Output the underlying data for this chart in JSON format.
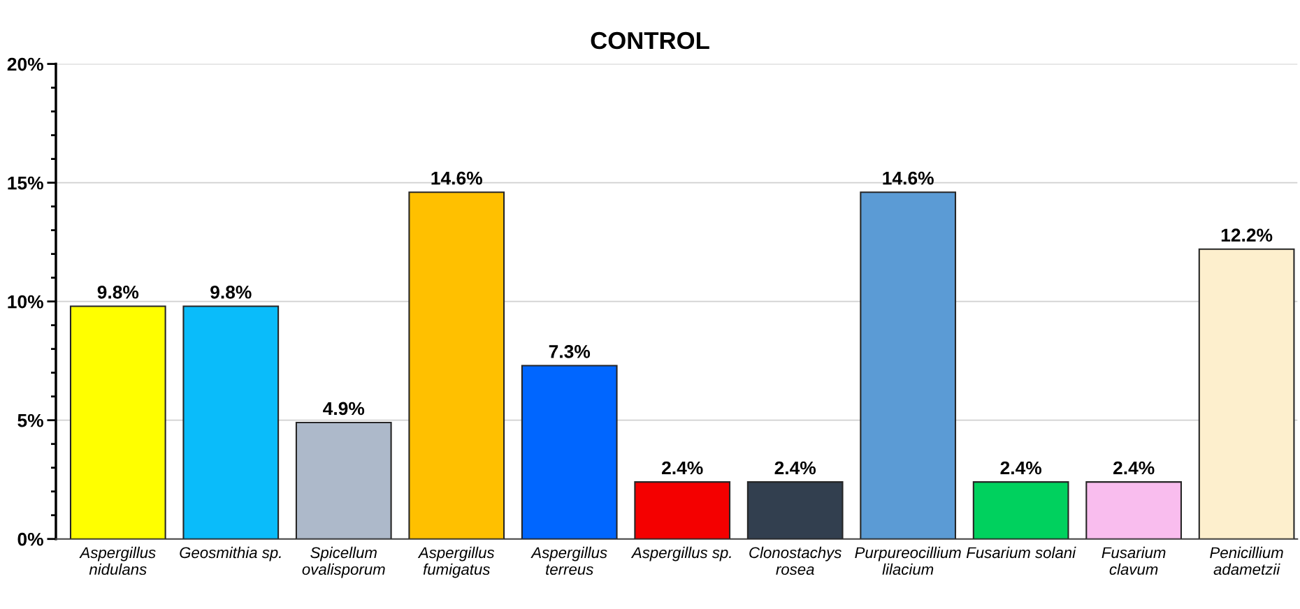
{
  "chart_data": {
    "type": "bar",
    "title": "CONTROL",
    "categories": [
      "Aspergillus\nnidulans",
      "Geosmithia sp.",
      "Spicellum\novalisporum",
      "Aspergillus\nfumigatus",
      "Aspergillus\nterreus",
      "Aspergillus sp.",
      "Clonostachys\nrosea",
      "Purpureocillium\nlilacium",
      "Fusarium solani",
      "Fusarium\nclavum",
      "Penicillium\nadametzii"
    ],
    "values": [
      9.8,
      9.8,
      4.9,
      14.6,
      7.3,
      2.4,
      2.4,
      14.6,
      2.4,
      2.4,
      12.2
    ],
    "colors": [
      "#ffff00",
      "#0abcfa",
      "#adb9ca",
      "#ffc000",
      "#0066ff",
      "#f40000",
      "#323f4f",
      "#5b9bd5",
      "#00d15e",
      "#f9bdee",
      "#fdefcd"
    ],
    "value_labels": [
      "9.8%",
      "9.8%",
      "4.9%",
      "14.6%",
      "7.3%",
      "2.4%",
      "2.4%",
      "14.6%",
      "2.4%",
      "2.4%",
      "12.2%"
    ],
    "ylim": [
      0,
      20
    ],
    "yticks": [
      {
        "value": 0,
        "label": "0%"
      },
      {
        "value": 5,
        "label": "5%"
      },
      {
        "value": 10,
        "label": "10%"
      },
      {
        "value": 15,
        "label": "15%"
      },
      {
        "value": 20,
        "label": "20%"
      }
    ],
    "grid": "y"
  }
}
